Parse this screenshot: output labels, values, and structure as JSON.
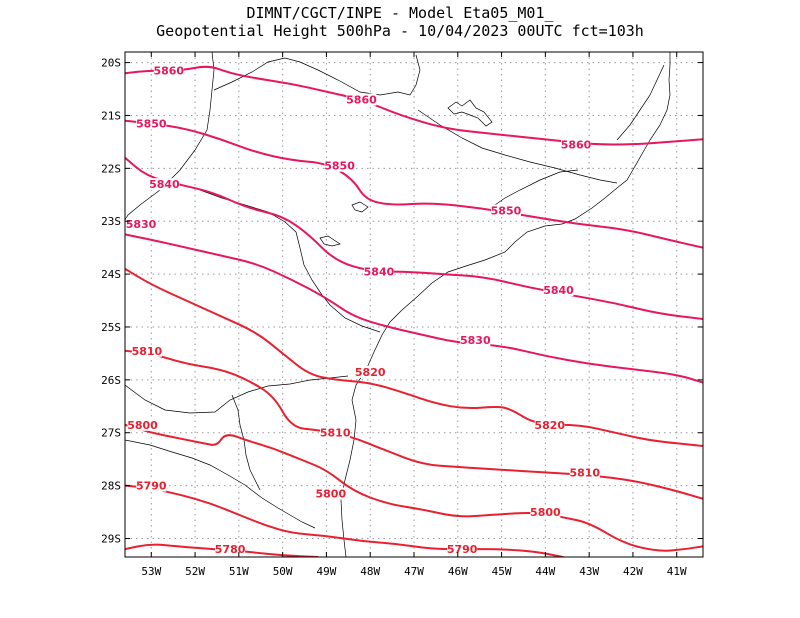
{
  "title": {
    "line1": "DIMNT/CGCT/INPE -  Model Eta05_M01_",
    "line2": "Geopotential Height 500hPa -  10/04/2023 00UTC fct=103h"
  },
  "chart_data": {
    "type": "contour",
    "variable": "Geopotential Height 500hPa",
    "lon_range": [
      -53.6,
      -40.4
    ],
    "lat_range": [
      -29.35,
      -19.8
    ],
    "grid": true,
    "lon_ticks": [
      {
        "value": -53,
        "label": "53W"
      },
      {
        "value": -52,
        "label": "52W"
      },
      {
        "value": -51,
        "label": "51W"
      },
      {
        "value": -50,
        "label": "50W"
      },
      {
        "value": -49,
        "label": "49W"
      },
      {
        "value": -48,
        "label": "48W"
      },
      {
        "value": -47,
        "label": "47W"
      },
      {
        "value": -46,
        "label": "46W"
      },
      {
        "value": -45,
        "label": "45W"
      },
      {
        "value": -44,
        "label": "44W"
      },
      {
        "value": -43,
        "label": "43W"
      },
      {
        "value": -42,
        "label": "42W"
      },
      {
        "value": -41,
        "label": "41W"
      }
    ],
    "lat_ticks": [
      {
        "value": -20,
        "label": "20S"
      },
      {
        "value": -21,
        "label": "21S"
      },
      {
        "value": -22,
        "label": "22S"
      },
      {
        "value": -23,
        "label": "23S"
      },
      {
        "value": -24,
        "label": "24S"
      },
      {
        "value": -25,
        "label": "25S"
      },
      {
        "value": -26,
        "label": "26S"
      },
      {
        "value": -27,
        "label": "27S"
      },
      {
        "value": -28,
        "label": "28S"
      },
      {
        "value": -29,
        "label": "29S"
      }
    ],
    "contours": [
      {
        "value": 5860,
        "color": "#e8175d",
        "points": [
          [
            -53.6,
            -20.2
          ],
          [
            -53.0,
            -20.15
          ],
          [
            -52.3,
            -20.15
          ],
          [
            -51.7,
            -20.05
          ],
          [
            -51.2,
            -20.2
          ],
          [
            -50.6,
            -20.3
          ],
          [
            -49.8,
            -20.4
          ],
          [
            -49.0,
            -20.55
          ],
          [
            -48.2,
            -20.7
          ],
          [
            -47.3,
            -21.0
          ],
          [
            -46.3,
            -21.25
          ],
          [
            -45.2,
            -21.35
          ],
          [
            -44.0,
            -21.45
          ],
          [
            -42.9,
            -21.55
          ],
          [
            -42.0,
            -21.55
          ],
          [
            -41.2,
            -21.5
          ],
          [
            -40.4,
            -21.45
          ]
        ],
        "labels": [
          {
            "text": "5860",
            "lon": -52.6,
            "lat": -20.15
          },
          {
            "text": "5860",
            "lon": -48.2,
            "lat": -20.7
          },
          {
            "text": "5860",
            "lon": -43.3,
            "lat": -21.55
          }
        ]
      },
      {
        "value": 5850,
        "color": "#e8175d",
        "points": [
          [
            -53.6,
            -21.1
          ],
          [
            -53.0,
            -21.15
          ],
          [
            -52.2,
            -21.25
          ],
          [
            -51.4,
            -21.45
          ],
          [
            -50.6,
            -21.7
          ],
          [
            -49.8,
            -21.85
          ],
          [
            -49.0,
            -21.9
          ],
          [
            -48.4,
            -22.2
          ],
          [
            -48.1,
            -22.6
          ],
          [
            -47.5,
            -22.7
          ],
          [
            -46.6,
            -22.65
          ],
          [
            -45.5,
            -22.75
          ],
          [
            -44.4,
            -22.9
          ],
          [
            -43.3,
            -23.05
          ],
          [
            -42.2,
            -23.15
          ],
          [
            -41.2,
            -23.35
          ],
          [
            -40.4,
            -23.5
          ]
        ],
        "labels": [
          {
            "text": "5850",
            "lon": -53.0,
            "lat": -21.15
          },
          {
            "text": "5850",
            "lon": -48.7,
            "lat": -21.95
          },
          {
            "text": "5850",
            "lon": -44.9,
            "lat": -22.8
          }
        ]
      },
      {
        "value": 5840,
        "color": "#e8175d",
        "points": [
          [
            -53.6,
            -21.8
          ],
          [
            -53.1,
            -22.15
          ],
          [
            -52.4,
            -22.3
          ],
          [
            -51.6,
            -22.45
          ],
          [
            -50.8,
            -22.75
          ],
          [
            -50.0,
            -22.9
          ],
          [
            -49.4,
            -23.25
          ],
          [
            -48.8,
            -23.75
          ],
          [
            -48.0,
            -23.95
          ],
          [
            -47.2,
            -23.95
          ],
          [
            -46.4,
            -24.0
          ],
          [
            -45.4,
            -24.05
          ],
          [
            -44.4,
            -24.25
          ],
          [
            -43.4,
            -24.4
          ],
          [
            -42.4,
            -24.55
          ],
          [
            -41.4,
            -24.75
          ],
          [
            -40.4,
            -24.85
          ]
        ],
        "labels": [
          {
            "text": "5840",
            "lon": -52.7,
            "lat": -22.3
          },
          {
            "text": "5840",
            "lon": -47.8,
            "lat": -23.95
          },
          {
            "text": "5840",
            "lon": -43.7,
            "lat": -24.3
          }
        ]
      },
      {
        "value": 5830,
        "color": "#e8175d",
        "points": [
          [
            -53.6,
            -23.25
          ],
          [
            -53.0,
            -23.35
          ],
          [
            -52.2,
            -23.5
          ],
          [
            -51.4,
            -23.65
          ],
          [
            -50.6,
            -23.8
          ],
          [
            -49.8,
            -24.1
          ],
          [
            -49.0,
            -24.45
          ],
          [
            -48.4,
            -24.8
          ],
          [
            -47.6,
            -25.0
          ],
          [
            -46.8,
            -25.15
          ],
          [
            -46.0,
            -25.3
          ],
          [
            -45.0,
            -25.35
          ],
          [
            -44.0,
            -25.55
          ],
          [
            -43.0,
            -25.7
          ],
          [
            -42.0,
            -25.8
          ],
          [
            -41.0,
            -25.9
          ],
          [
            -40.4,
            -26.05
          ]
        ],
        "labels": [
          {
            "text": "5830",
            "lon": -53.5,
            "lat": -23.05
          },
          {
            "text": "5830",
            "lon": -45.6,
            "lat": -25.25
          }
        ]
      },
      {
        "value": 5820,
        "color": "#e82030",
        "points": [
          [
            -53.6,
            -23.9
          ],
          [
            -53.0,
            -24.2
          ],
          [
            -52.2,
            -24.5
          ],
          [
            -51.4,
            -24.8
          ],
          [
            -50.6,
            -25.1
          ],
          [
            -50.0,
            -25.5
          ],
          [
            -49.4,
            -25.9
          ],
          [
            -48.8,
            -26.0
          ],
          [
            -48.0,
            -26.05
          ],
          [
            -47.2,
            -26.25
          ],
          [
            -46.5,
            -26.45
          ],
          [
            -45.8,
            -26.55
          ],
          [
            -45.1,
            -26.5
          ],
          [
            -44.8,
            -26.55
          ],
          [
            -44.2,
            -26.85
          ],
          [
            -43.2,
            -26.85
          ],
          [
            -42.4,
            -27.0
          ],
          [
            -41.6,
            -27.15
          ],
          [
            -40.4,
            -27.25
          ]
        ],
        "labels": [
          {
            "text": "5820",
            "lon": -48.0,
            "lat": -25.85
          },
          {
            "text": "5820",
            "lon": -43.9,
            "lat": -26.85
          }
        ]
      },
      {
        "value": 5810,
        "color": "#e82030",
        "points": [
          [
            -53.6,
            -25.45
          ],
          [
            -53.0,
            -25.5
          ],
          [
            -52.2,
            -25.7
          ],
          [
            -51.4,
            -25.8
          ],
          [
            -50.8,
            -26.0
          ],
          [
            -50.2,
            -26.3
          ],
          [
            -49.8,
            -26.9
          ],
          [
            -49.2,
            -26.95
          ],
          [
            -48.5,
            -27.05
          ],
          [
            -47.6,
            -27.35
          ],
          [
            -46.8,
            -27.6
          ],
          [
            -46.0,
            -27.65
          ],
          [
            -45.0,
            -27.7
          ],
          [
            -44.0,
            -27.75
          ],
          [
            -43.0,
            -27.8
          ],
          [
            -42.0,
            -27.9
          ],
          [
            -41.0,
            -28.1
          ],
          [
            -40.4,
            -28.25
          ]
        ],
        "labels": [
          {
            "text": "5810",
            "lon": -53.1,
            "lat": -25.45
          },
          {
            "text": "5810",
            "lon": -48.8,
            "lat": -27.0
          },
          {
            "text": "5810",
            "lon": -43.1,
            "lat": -27.75
          }
        ]
      },
      {
        "value": 5800,
        "color": "#e82030",
        "points": [
          [
            -53.6,
            -26.85
          ],
          [
            -53.0,
            -27.0
          ],
          [
            -52.4,
            -27.1
          ],
          [
            -51.8,
            -27.2
          ],
          [
            -51.5,
            -27.25
          ],
          [
            -51.3,
            -27.0
          ],
          [
            -50.8,
            -27.15
          ],
          [
            -50.2,
            -27.3
          ],
          [
            -49.6,
            -27.5
          ],
          [
            -49.0,
            -27.7
          ],
          [
            -48.4,
            -28.1
          ],
          [
            -47.6,
            -28.35
          ],
          [
            -46.8,
            -28.45
          ],
          [
            -46.0,
            -28.6
          ],
          [
            -45.2,
            -28.55
          ],
          [
            -44.2,
            -28.5
          ],
          [
            -43.6,
            -28.6
          ],
          [
            -43.0,
            -28.7
          ],
          [
            -42.2,
            -29.1
          ],
          [
            -41.4,
            -29.25
          ],
          [
            -40.8,
            -29.2
          ],
          [
            -40.4,
            -29.15
          ]
        ],
        "labels": [
          {
            "text": "5800",
            "lon": -53.2,
            "lat": -26.85
          },
          {
            "text": "5800",
            "lon": -48.9,
            "lat": -28.15
          },
          {
            "text": "5800",
            "lon": -44.0,
            "lat": -28.5
          }
        ]
      },
      {
        "value": 5790,
        "color": "#e82030",
        "points": [
          [
            -53.6,
            -28.0
          ],
          [
            -53.0,
            -28.05
          ],
          [
            -52.2,
            -28.2
          ],
          [
            -51.6,
            -28.35
          ],
          [
            -51.0,
            -28.55
          ],
          [
            -50.4,
            -28.75
          ],
          [
            -49.8,
            -28.9
          ],
          [
            -49.0,
            -28.95
          ],
          [
            -48.2,
            -29.05
          ],
          [
            -47.4,
            -29.1
          ],
          [
            -46.6,
            -29.2
          ],
          [
            -45.8,
            -29.2
          ],
          [
            -45.0,
            -29.2
          ],
          [
            -44.2,
            -29.25
          ],
          [
            -43.6,
            -29.35
          ]
        ],
        "labels": [
          {
            "text": "5790",
            "lon": -53.0,
            "lat": -28.0
          },
          {
            "text": "5790",
            "lon": -45.9,
            "lat": -29.2
          }
        ]
      },
      {
        "value": 5780,
        "color": "#e82030",
        "points": [
          [
            -53.6,
            -29.2
          ],
          [
            -53.0,
            -29.1
          ],
          [
            -52.4,
            -29.15
          ],
          [
            -51.6,
            -29.2
          ],
          [
            -50.8,
            -29.25
          ],
          [
            -50.0,
            -29.32
          ],
          [
            -49.2,
            -29.35
          ]
        ],
        "labels": [
          {
            "text": "5780",
            "lon": -51.2,
            "lat": -29.2
          }
        ]
      }
    ]
  }
}
